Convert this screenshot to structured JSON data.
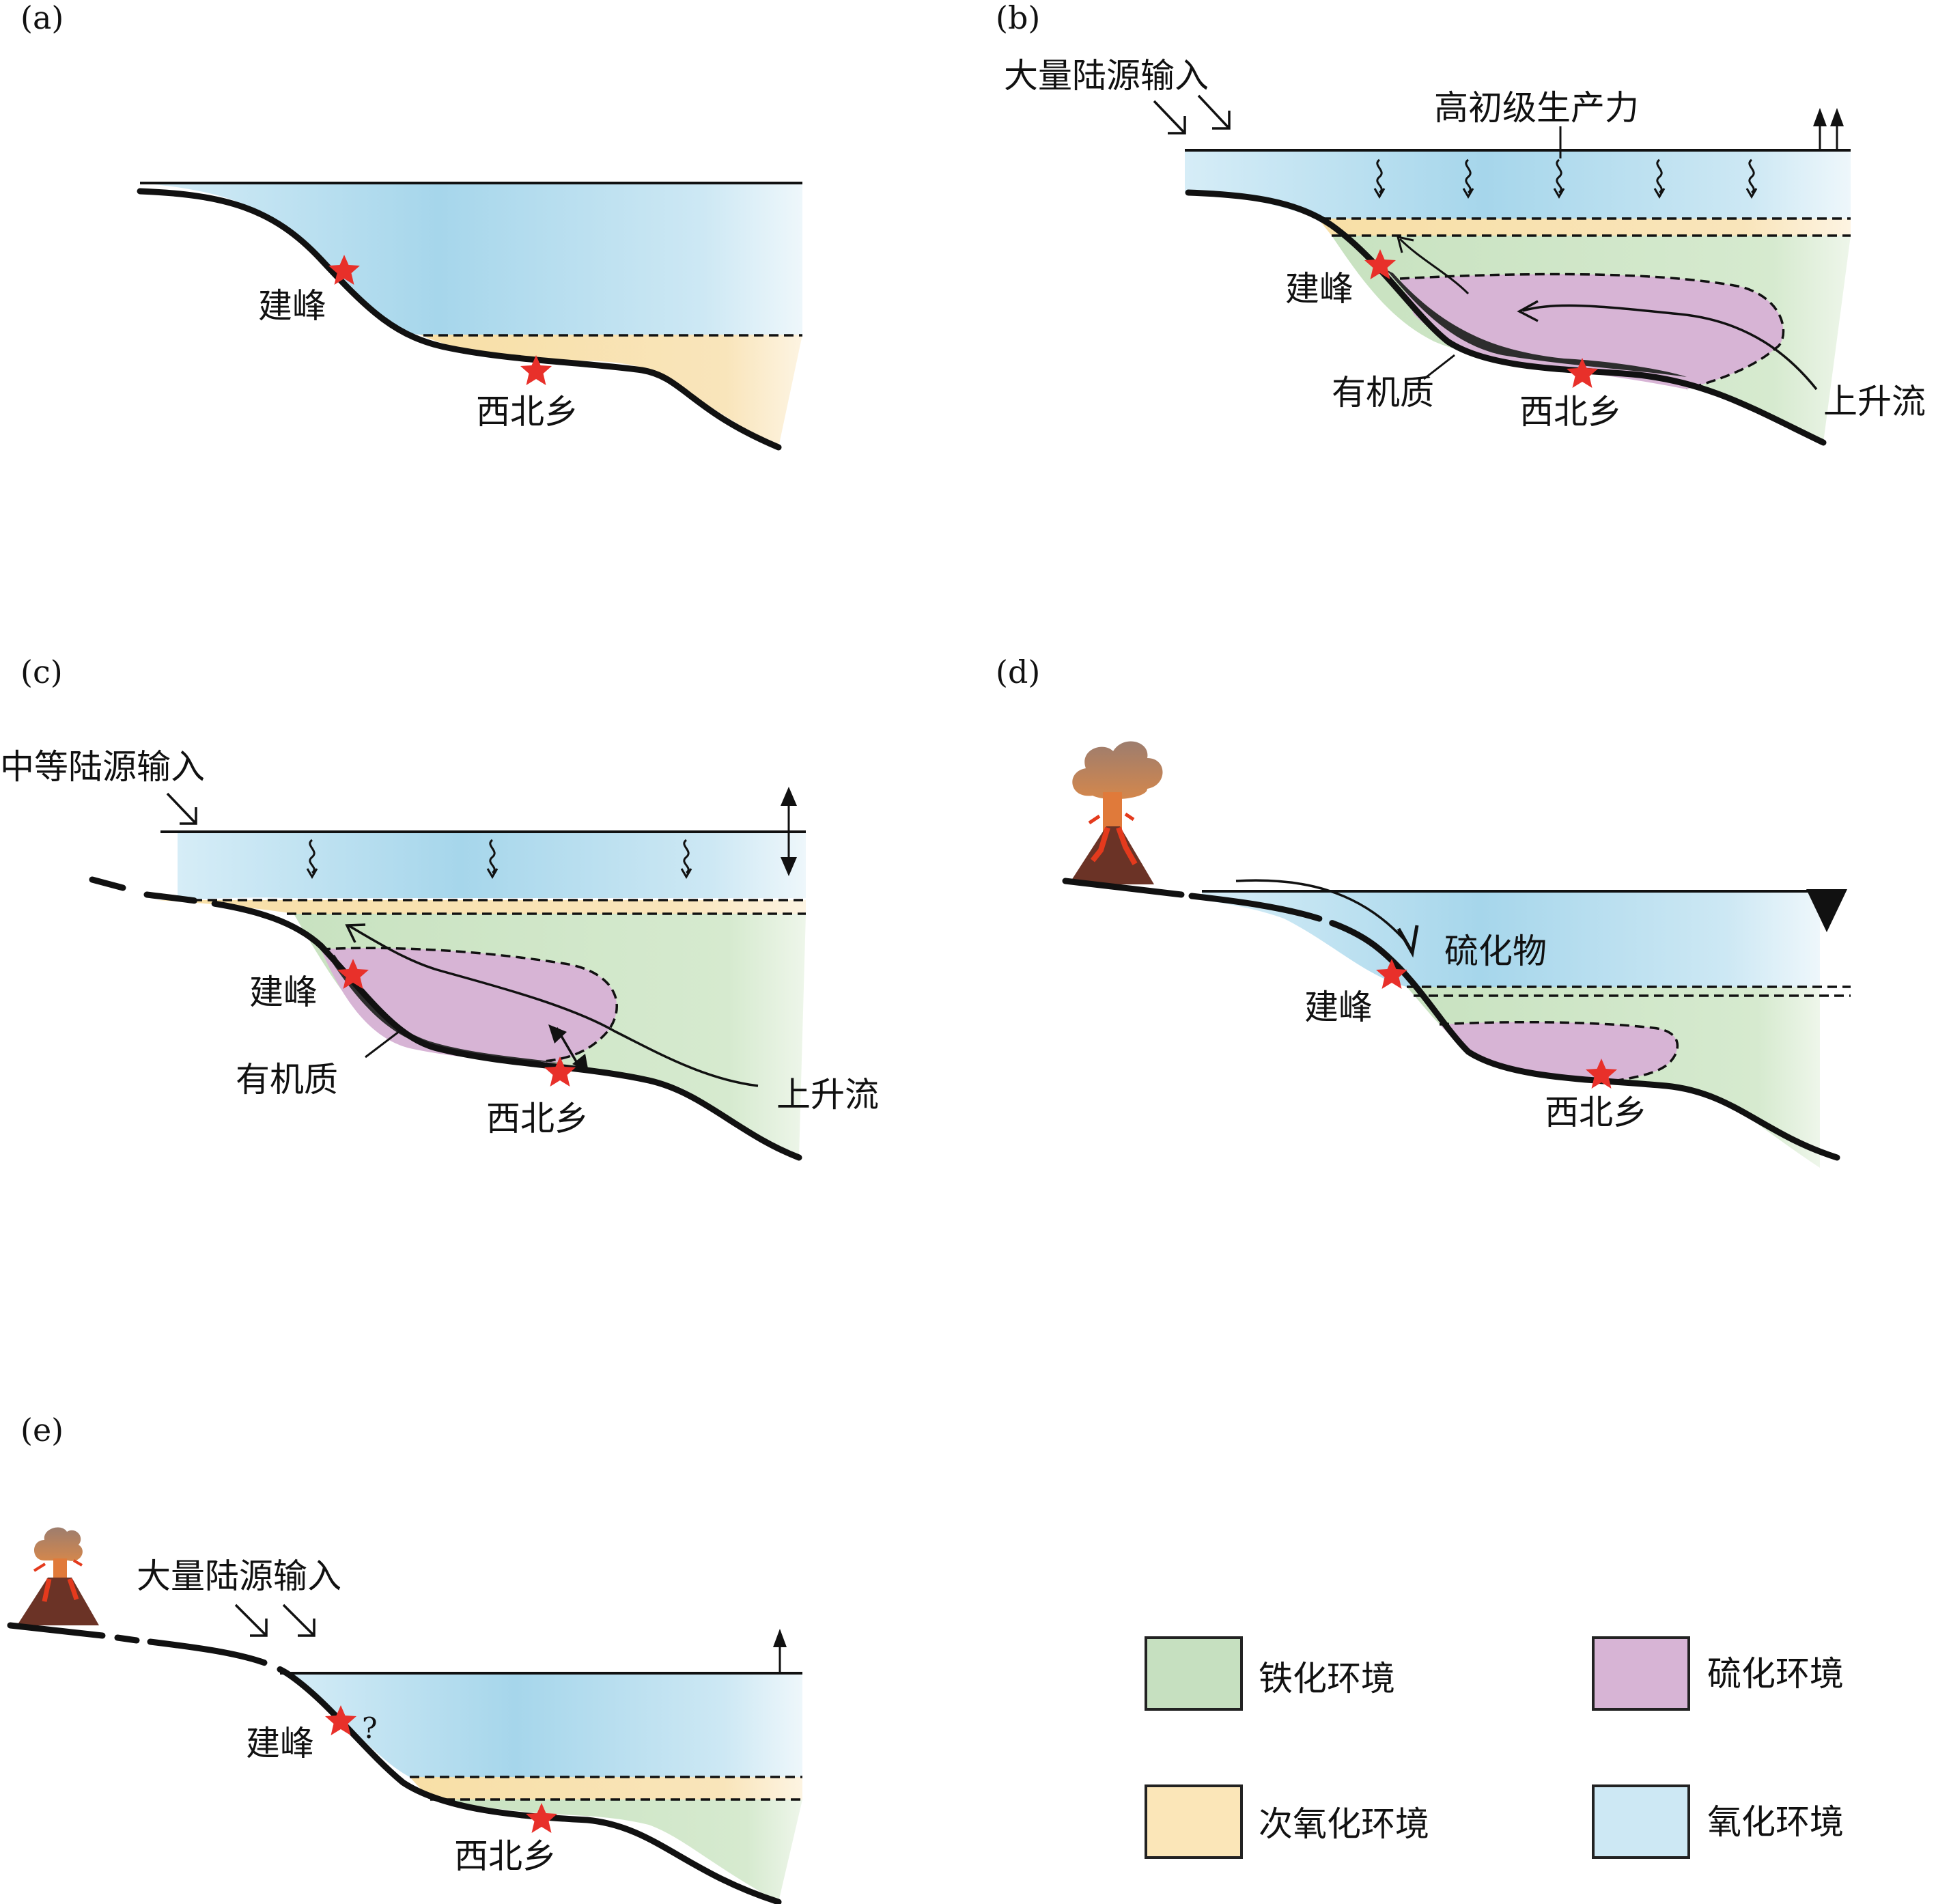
{
  "panels": {
    "a": {
      "tag": "(a)",
      "site_upper": "建峰",
      "site_lower": "西北乡"
    },
    "b": {
      "tag": "(b)",
      "input_label": "大量陆源输入",
      "productivity_label": "高初级生产力",
      "site_upper": "建峰",
      "site_lower": "西北乡",
      "organic_label": "有机质",
      "upwelling_label": "上升流"
    },
    "c": {
      "tag": "(c)",
      "input_label": "中等陆源输入",
      "site_upper": "建峰",
      "site_lower": "西北乡",
      "organic_label": "有机质",
      "upwelling_label": "上升流"
    },
    "d": {
      "tag": "(d)",
      "sulfide_label": "硫化物",
      "site_upper": "建峰",
      "site_lower": "西北乡"
    },
    "e": {
      "tag": "(e)",
      "input_label": "大量陆源输入",
      "site_upper": "建峰",
      "question_mark": "?",
      "site_lower": "西北乡"
    }
  },
  "legend": [
    {
      "label": "铁化环境",
      "color": "#c6e0c0"
    },
    {
      "label": "硫化环境",
      "color": "#d7b4d5"
    },
    {
      "label": "次氧化环境",
      "color": "#fbe6b8"
    },
    {
      "label": "氧化环境",
      "color": "#cde8f4"
    }
  ],
  "colors": {
    "oxic": "#a9d8ec",
    "suboxic": "#f8dfa6",
    "ferruginous": "#c8e2c0",
    "euxinic": "#d7b4d5",
    "site_star": "#e8302a",
    "volcano": "#6b3326",
    "lava": "#e43a1d",
    "ash": "#9d7d6e"
  }
}
